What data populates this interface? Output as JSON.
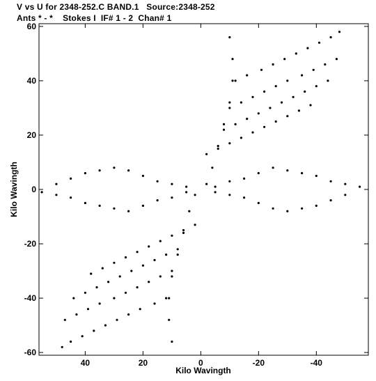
{
  "header": {
    "line1": "V vs U for 2348-252.C BAND.1   Source:2348-252",
    "line2": "Ants * - *    Stokes I  IF# 1 - 2  Chan# 1"
  },
  "chart_data": {
    "type": "scatter",
    "xlabel": "Kilo Wavingth",
    "ylabel": "Kilo Wavingth",
    "xlim": [
      56,
      -58
    ],
    "ylim": [
      -61,
      61
    ],
    "xticks": [
      40,
      20,
      0,
      -20,
      -40
    ],
    "xtick_labels": [
      "40",
      "20",
      "0",
      "-20",
      "-40"
    ],
    "yticks": [
      60,
      40,
      20,
      0,
      -20,
      -40,
      -60
    ],
    "ytick_labels": [
      "60",
      "40",
      "20",
      "0",
      "-20",
      "-40",
      "-60"
    ],
    "grid": false,
    "legend": "none",
    "marker_color": "#000000",
    "series": [
      {
        "values": [
          [
            -48,
            58
          ],
          [
            -45,
            56
          ],
          [
            -41,
            54
          ],
          [
            -37,
            52
          ],
          [
            -33,
            50
          ],
          [
            -29,
            48
          ],
          [
            -25,
            46
          ],
          [
            -21,
            44
          ],
          [
            -16,
            42
          ],
          [
            -12,
            40
          ],
          [
            -47,
            48
          ],
          [
            -43,
            46
          ],
          [
            -39,
            44
          ],
          [
            -35,
            42
          ],
          [
            -30,
            40
          ],
          [
            -26,
            38
          ],
          [
            -22,
            36
          ],
          [
            -18,
            34
          ],
          [
            -14,
            32
          ],
          [
            -10,
            30
          ],
          [
            -44,
            40
          ],
          [
            -40,
            38
          ],
          [
            -36,
            36
          ],
          [
            -32,
            34
          ],
          [
            -28,
            32
          ],
          [
            -24,
            30
          ],
          [
            -20,
            28
          ],
          [
            -16,
            26
          ],
          [
            -12,
            24
          ],
          [
            -8,
            22
          ],
          [
            -38,
            31
          ],
          [
            -34,
            29
          ],
          [
            -30,
            27
          ],
          [
            -26,
            25
          ],
          [
            -22,
            23
          ],
          [
            -18,
            21
          ],
          [
            -14,
            19
          ],
          [
            -10,
            17
          ],
          [
            -6,
            15
          ],
          [
            -2,
            13
          ],
          [
            48,
            -58
          ],
          [
            45,
            -56
          ],
          [
            41,
            -54
          ],
          [
            37,
            -52
          ],
          [
            33,
            -50
          ],
          [
            29,
            -48
          ],
          [
            25,
            -46
          ],
          [
            21,
            -44
          ],
          [
            16,
            -42
          ],
          [
            12,
            -40
          ],
          [
            47,
            -48
          ],
          [
            43,
            -46
          ],
          [
            39,
            -44
          ],
          [
            35,
            -42
          ],
          [
            30,
            -40
          ],
          [
            26,
            -38
          ],
          [
            22,
            -36
          ],
          [
            18,
            -34
          ],
          [
            14,
            -32
          ],
          [
            10,
            -30
          ],
          [
            44,
            -40
          ],
          [
            40,
            -38
          ],
          [
            36,
            -36
          ],
          [
            32,
            -34
          ],
          [
            28,
            -32
          ],
          [
            24,
            -30
          ],
          [
            20,
            -28
          ],
          [
            16,
            -26
          ],
          [
            12,
            -24
          ],
          [
            8,
            -22
          ],
          [
            38,
            -31
          ],
          [
            34,
            -29
          ],
          [
            30,
            -27
          ],
          [
            26,
            -25
          ],
          [
            22,
            -23
          ],
          [
            18,
            -21
          ],
          [
            14,
            -19
          ],
          [
            10,
            -17
          ],
          [
            6,
            -15
          ],
          [
            2,
            -13
          ],
          [
            -10,
            56
          ],
          [
            -11,
            48
          ],
          [
            -11,
            40
          ],
          [
            -10,
            32
          ],
          [
            -8,
            24
          ],
          [
            -6,
            16
          ],
          [
            -4,
            8
          ],
          [
            -2,
            2
          ],
          [
            10,
            -56
          ],
          [
            11,
            -48
          ],
          [
            11,
            -40
          ],
          [
            10,
            -32
          ],
          [
            8,
            -24
          ],
          [
            6,
            -16
          ],
          [
            4,
            -8
          ],
          [
            2,
            -2
          ],
          [
            -55,
            1
          ],
          [
            -50,
            2
          ],
          [
            -45,
            3
          ],
          [
            -40,
            5
          ],
          [
            -35,
            6
          ],
          [
            -30,
            7
          ],
          [
            -25,
            8
          ],
          [
            -20,
            6
          ],
          [
            -15,
            4
          ],
          [
            -10,
            3
          ],
          [
            -5,
            1
          ],
          [
            55,
            -1
          ],
          [
            50,
            -2
          ],
          [
            45,
            -3
          ],
          [
            40,
            -5
          ],
          [
            35,
            -6
          ],
          [
            30,
            -7
          ],
          [
            25,
            -8
          ],
          [
            20,
            -6
          ],
          [
            15,
            -4
          ],
          [
            10,
            -3
          ],
          [
            5,
            -1
          ],
          [
            50,
            2
          ],
          [
            45,
            4
          ],
          [
            40,
            6
          ],
          [
            35,
            7
          ],
          [
            30,
            8
          ],
          [
            25,
            7
          ],
          [
            20,
            5
          ],
          [
            15,
            3
          ],
          [
            10,
            2
          ],
          [
            5,
            1
          ],
          [
            -50,
            -2
          ],
          [
            -45,
            -4
          ],
          [
            -40,
            -6
          ],
          [
            -35,
            -7
          ],
          [
            -30,
            -8
          ],
          [
            -25,
            -7
          ],
          [
            -20,
            -5
          ],
          [
            -15,
            -3
          ],
          [
            -10,
            -2
          ],
          [
            -5,
            -1
          ]
        ]
      }
    ]
  }
}
